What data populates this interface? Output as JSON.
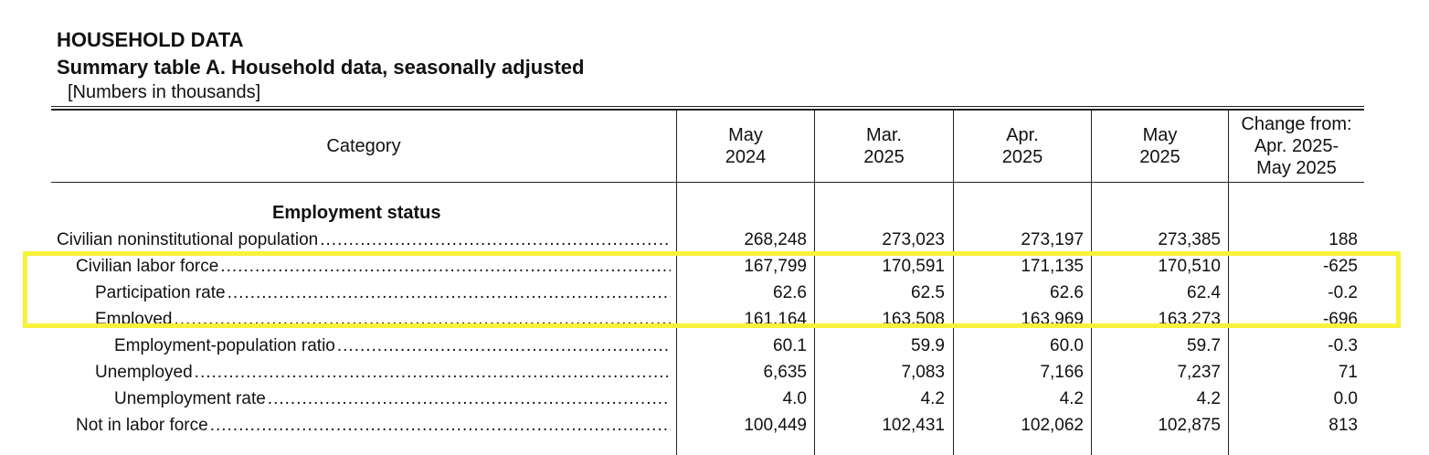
{
  "header": {
    "title": "HOUSEHOLD DATA",
    "subtitle": "Summary table A. Household data, seasonally adjusted",
    "units_note": "[Numbers in thousands]"
  },
  "columns": {
    "category": "Category",
    "c1": [
      "May",
      "2024"
    ],
    "c2": [
      "Mar.",
      "2025"
    ],
    "c3": [
      "Apr.",
      "2025"
    ],
    "c4": [
      "May",
      "2025"
    ],
    "c5": [
      "Change from:",
      "Apr. 2025-",
      "May 2025"
    ]
  },
  "section": {
    "title": "Employment status"
  },
  "rows": [
    {
      "label": "Civilian noninstitutional population",
      "values": [
        "268,248",
        "273,023",
        "273,197",
        "273,385",
        "188"
      ]
    },
    {
      "label": "Civilian labor force",
      "values": [
        "167,799",
        "170,591",
        "171,135",
        "170,510",
        "-625"
      ]
    },
    {
      "label": "Participation rate",
      "values": [
        "62.6",
        "62.5",
        "62.6",
        "62.4",
        "-0.2"
      ]
    },
    {
      "label": "Employed",
      "values": [
        "161,164",
        "163,508",
        "163,969",
        "163,273",
        "-696"
      ]
    },
    {
      "label": "Employment-population ratio",
      "values": [
        "60.1",
        "59.9",
        "60.0",
        "59.7",
        "-0.3"
      ]
    },
    {
      "label": "Unemployed",
      "values": [
        "6,635",
        "7,083",
        "7,166",
        "7,237",
        "71"
      ]
    },
    {
      "label": "Unemployment rate",
      "values": [
        "4.0",
        "4.2",
        "4.2",
        "4.2",
        "0.0"
      ]
    },
    {
      "label": "Not in labor force",
      "values": [
        "100,449",
        "102,431",
        "102,062",
        "102,875",
        "813"
      ]
    }
  ],
  "highlight": {
    "color": "#f7f23a"
  }
}
